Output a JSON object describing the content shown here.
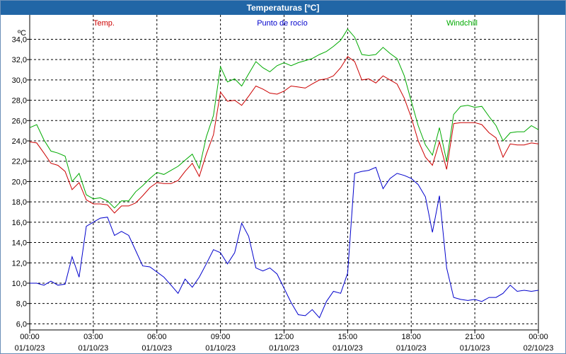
{
  "window": {
    "title": "Temperaturas [ºC]"
  },
  "colors": {
    "titlebar": "#2166a6",
    "temp": "#cc0000",
    "dew": "#0000cc",
    "windchill": "#00aa00",
    "grid": "#000000"
  },
  "chart_data": {
    "type": "line",
    "title": "Temperaturas [ºC]",
    "ylabel": "ºC",
    "xlabel": "",
    "ylim": [
      5.4,
      36.4
    ],
    "xlim": [
      0,
      24
    ],
    "grid": true,
    "legend_placement": "top",
    "yticks": [
      "6,0",
      "8,0",
      "10,0",
      "12,0",
      "14,0",
      "16,0",
      "18,0",
      "20,0",
      "22,0",
      "24,0",
      "26,0",
      "28,0",
      "30,0",
      "32,0",
      "34,0"
    ],
    "xticks": [
      {
        "time": "00:00",
        "date": "01/10/23"
      },
      {
        "time": "03:00",
        "date": "01/10/23"
      },
      {
        "time": "06:00",
        "date": "01/10/23"
      },
      {
        "time": "09:00",
        "date": "01/10/23"
      },
      {
        "time": "12:00",
        "date": "01/10/23"
      },
      {
        "time": "15:00",
        "date": "01/10/23"
      },
      {
        "time": "18:00",
        "date": "01/10/23"
      },
      {
        "time": "21:00",
        "date": "01/10/23"
      },
      {
        "time": "00:00",
        "date": "02/10/23"
      }
    ],
    "series": [
      {
        "name": "Temp.",
        "color": "#cc0000",
        "x": [
          0,
          0.33,
          0.67,
          1,
          1.33,
          1.67,
          2,
          2.33,
          2.67,
          3,
          3.33,
          3.67,
          4,
          4.33,
          4.67,
          5,
          5.33,
          5.67,
          6,
          6.33,
          6.67,
          7,
          7.33,
          7.67,
          8,
          8.33,
          8.67,
          9,
          9.33,
          9.67,
          10,
          10.33,
          10.67,
          11,
          11.33,
          11.67,
          12,
          12.33,
          12.67,
          13,
          13.33,
          13.67,
          14,
          14.33,
          14.67,
          15,
          15.33,
          15.67,
          16,
          16.33,
          16.67,
          17,
          17.33,
          17.67,
          18,
          18.33,
          18.67,
          19,
          19.33,
          19.67,
          20,
          20.33,
          20.67,
          21,
          21.33,
          21.67,
          22,
          22.33,
          22.67,
          23,
          23.33,
          23.67,
          24
        ],
        "y": [
          23.9,
          23.8,
          22.8,
          21.8,
          21.6,
          21.0,
          19.2,
          19.9,
          18.2,
          17.8,
          17.8,
          17.7,
          16.9,
          17.6,
          17.6,
          17.9,
          18.6,
          19.4,
          19.9,
          19.8,
          19.8,
          20.1,
          21.0,
          21.8,
          20.5,
          22.7,
          24.6,
          28.8,
          27.9,
          28.0,
          27.5,
          28.4,
          29.4,
          29.1,
          28.7,
          28.6,
          28.9,
          29.4,
          29.3,
          29.2,
          29.6,
          30.0,
          30.1,
          30.4,
          31.2,
          32.3,
          31.8,
          30.0,
          30.1,
          29.7,
          30.4,
          30.0,
          29.6,
          28.2,
          26.3,
          24.0,
          22.4,
          21.6,
          23.9,
          21.2,
          25.7,
          25.8,
          25.8,
          25.8,
          25.6,
          24.8,
          24.3,
          22.4,
          23.7,
          23.6,
          23.6,
          23.8,
          23.7
        ]
      },
      {
        "name": "Punto de rocío",
        "color": "#0000cc",
        "x": [
          0,
          0.33,
          0.67,
          1,
          1.33,
          1.67,
          2,
          2.33,
          2.67,
          3,
          3.33,
          3.67,
          4,
          4.33,
          4.67,
          5,
          5.33,
          5.67,
          6,
          6.33,
          6.67,
          7,
          7.33,
          7.67,
          8,
          8.33,
          8.67,
          9,
          9.33,
          9.67,
          10,
          10.33,
          10.67,
          11,
          11.33,
          11.67,
          12,
          12.33,
          12.67,
          13,
          13.33,
          13.67,
          14,
          14.33,
          14.67,
          15,
          15.33,
          15.67,
          16,
          16.33,
          16.67,
          17,
          17.33,
          17.67,
          18,
          18.33,
          18.67,
          19,
          19.33,
          19.67,
          20,
          20.33,
          20.67,
          21,
          21.33,
          21.67,
          22,
          22.33,
          22.67,
          23,
          23.33,
          23.67,
          24
        ],
        "y": [
          10.0,
          10.0,
          9.8,
          10.2,
          9.8,
          9.9,
          12.6,
          10.6,
          15.6,
          16.0,
          16.4,
          16.5,
          14.7,
          15.1,
          14.7,
          13.2,
          11.7,
          11.6,
          11.1,
          10.6,
          9.8,
          9.0,
          10.4,
          9.6,
          10.6,
          11.9,
          13.3,
          13.0,
          11.9,
          13.0,
          15.9,
          14.6,
          11.5,
          11.2,
          11.5,
          10.9,
          9.5,
          8.1,
          6.9,
          6.8,
          7.4,
          6.6,
          8.2,
          9.2,
          9.0,
          11.0,
          20.8,
          21.0,
          21.1,
          21.4,
          19.3,
          20.3,
          20.8,
          20.6,
          20.3,
          19.7,
          18.5,
          15.0,
          18.6,
          11.5,
          8.6,
          8.4,
          8.3,
          8.4,
          8.2,
          8.6,
          8.6,
          9.0,
          9.8,
          9.2,
          9.3,
          9.2,
          9.3
        ]
      },
      {
        "name": "Windchill",
        "color": "#00aa00",
        "x": [
          0,
          0.33,
          0.67,
          1,
          1.33,
          1.67,
          2,
          2.33,
          2.67,
          3,
          3.33,
          3.67,
          4,
          4.33,
          4.67,
          5,
          5.33,
          5.67,
          6,
          6.33,
          6.67,
          7,
          7.33,
          7.67,
          8,
          8.33,
          8.67,
          9,
          9.33,
          9.67,
          10,
          10.33,
          10.67,
          11,
          11.33,
          11.67,
          12,
          12.33,
          12.67,
          13,
          13.33,
          13.67,
          14,
          14.33,
          14.67,
          15,
          15.33,
          15.67,
          16,
          16.33,
          16.67,
          17,
          17.33,
          17.67,
          18,
          18.33,
          18.67,
          19,
          19.33,
          19.67,
          20,
          20.33,
          20.67,
          21,
          21.33,
          21.67,
          22,
          22.33,
          22.67,
          23,
          23.33,
          23.67,
          24
        ],
        "y": [
          25.3,
          25.6,
          24.1,
          23.0,
          22.8,
          22.5,
          20.0,
          20.8,
          18.7,
          18.3,
          18.4,
          18.1,
          17.4,
          18.1,
          18.1,
          19.0,
          19.6,
          20.3,
          20.9,
          20.7,
          21.1,
          21.5,
          22.1,
          22.7,
          21.3,
          24.4,
          26.5,
          31.3,
          29.8,
          30.1,
          29.4,
          30.6,
          31.8,
          31.2,
          30.8,
          31.4,
          31.7,
          31.4,
          31.7,
          31.9,
          32.1,
          32.5,
          32.8,
          33.3,
          33.9,
          35.0,
          34.2,
          32.5,
          32.4,
          32.5,
          33.2,
          32.6,
          32.1,
          30.4,
          27.9,
          25.5,
          23.6,
          22.6,
          25.3,
          22.0,
          26.6,
          27.4,
          27.5,
          27.3,
          27.4,
          26.4,
          25.5,
          24.0,
          24.8,
          24.9,
          24.9,
          25.5,
          25.1
        ]
      }
    ]
  }
}
